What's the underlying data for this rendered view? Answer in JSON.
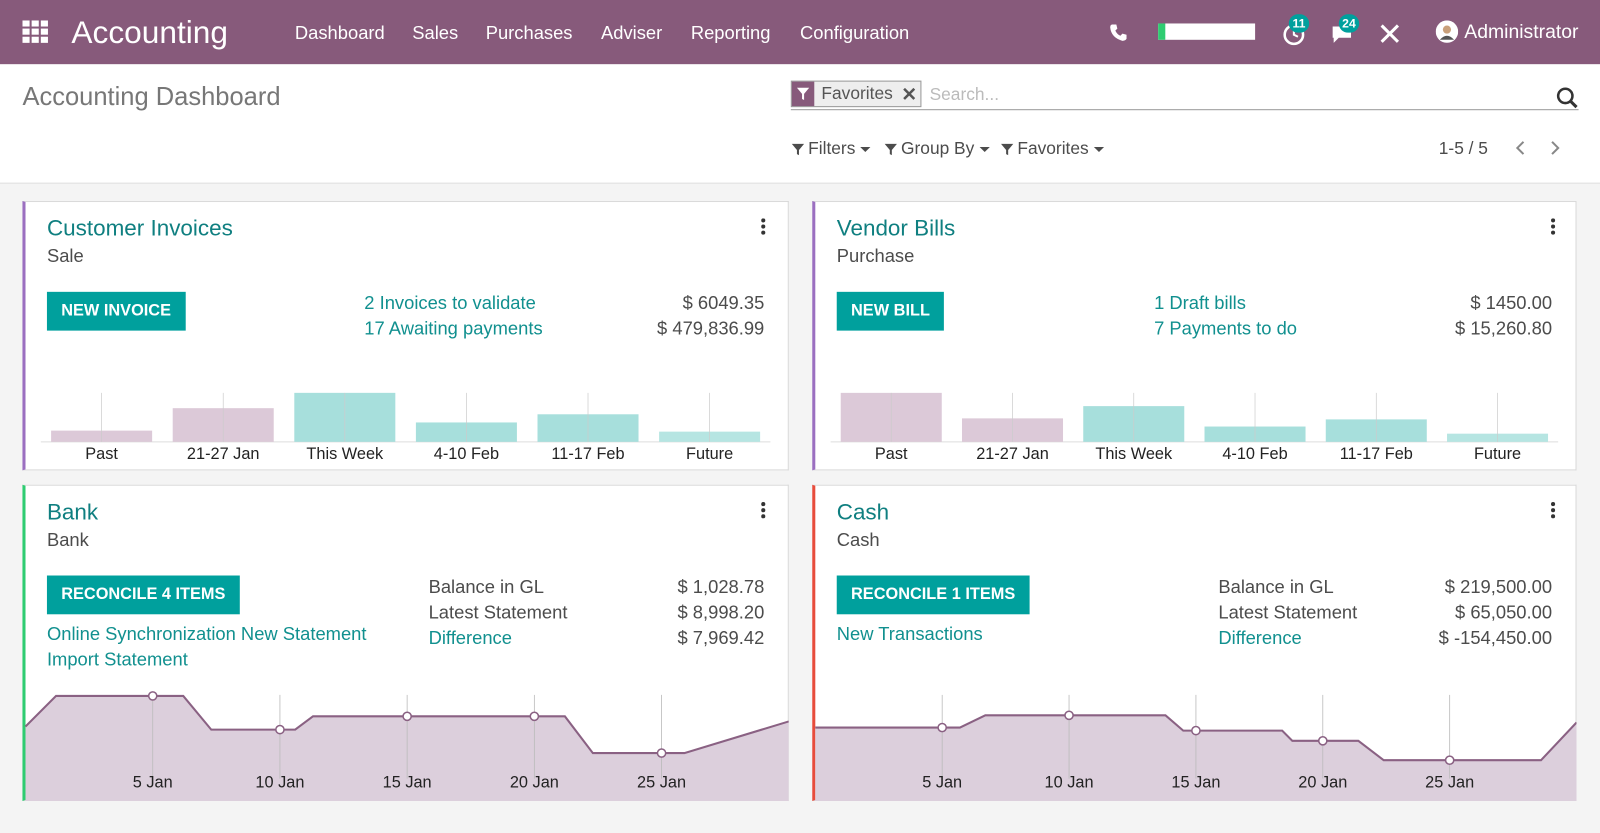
{
  "navbar": {
    "app_name": "Accounting",
    "menu": [
      "Dashboard",
      "Sales",
      "Purchases",
      "Adviser",
      "Reporting",
      "Configuration"
    ],
    "badges": [
      11,
      24
    ],
    "user": "Administrator"
  },
  "control_panel": {
    "breadcrumb": "Accounting Dashboard",
    "facet": "Favorites",
    "search_placeholder": "Search...",
    "buttons": [
      "Filters",
      "Group By",
      "Favorites"
    ],
    "pager": "1-5 / 5"
  },
  "journals": [
    {
      "name": "Customer Invoices",
      "type": "Sale",
      "color": "#9b6fc0",
      "button": "NEW INVOICE",
      "links": [],
      "stats": [
        {
          "label": "2 Invoices to validate",
          "amount": "$ 6049.35",
          "link": true
        },
        {
          "label": "17 Awaiting payments",
          "amount": "$ 479,836.99",
          "link": true
        }
      ],
      "chart": {
        "type": "bar",
        "categories": [
          "Past",
          "21-27 Jan",
          "This Week",
          "4-10 Feb",
          "11-17 Feb",
          "Future"
        ],
        "values": [
          11,
          33,
          48,
          19,
          27,
          10
        ],
        "colors": [
          "#dcc9d8",
          "#dcc9d8",
          "#a7dfdc",
          "#a7dfdc",
          "#a7dfdc",
          "#b6e5e2"
        ]
      }
    },
    {
      "name": "Vendor Bills",
      "type": "Purchase",
      "color": "#9b6fc0",
      "button": "NEW BILL",
      "links": [],
      "stats": [
        {
          "label": "1 Draft bills",
          "amount": "$ 1450.00",
          "link": true
        },
        {
          "label": "7 Payments to do",
          "amount": "$ 15,260.80",
          "link": true
        }
      ],
      "chart": {
        "type": "bar",
        "categories": [
          "Past",
          "21-27 Jan",
          "This Week",
          "4-10 Feb",
          "11-17 Feb",
          "Future"
        ],
        "values": [
          48,
          23,
          35,
          15,
          22,
          8
        ],
        "colors": [
          "#dcc9d8",
          "#dcc9d8",
          "#a7dfdc",
          "#a7dfdc",
          "#a7dfdc",
          "#b6e5e2"
        ]
      }
    },
    {
      "name": "Bank",
      "type": "Bank",
      "color": "#2ecc71",
      "button": "RECONCILE 4 ITEMS",
      "links": [
        "Online Synchronization New Statement",
        "Import Statement"
      ],
      "stats": [
        {
          "label": "Balance in GL",
          "amount": "$ 1,028.78",
          "link": false
        },
        {
          "label": "Latest Statement",
          "amount": "$ 8,998.20",
          "link": false
        },
        {
          "label": "Difference",
          "amount": "$ 7,969.42",
          "link": true
        }
      ],
      "chart": {
        "type": "line",
        "color": "#8a6183",
        "fill": "#dccfdc",
        "xlim": [
          0,
          30
        ],
        "xticks": [
          {
            "value": 5,
            "label": "5 Jan"
          },
          {
            "value": 10,
            "label": "10 Jan"
          },
          {
            "value": 15,
            "label": "15 Jan"
          },
          {
            "value": 20,
            "label": "20 Jan"
          },
          {
            "value": 25,
            "label": "25 Jan"
          }
        ],
        "x": [
          0,
          1.2,
          5,
          6.2,
          7.3,
          10,
          10.6,
          11.3,
          15,
          20,
          21.2,
          22.3,
          25,
          25.9,
          30
        ],
        "values": [
          73,
          103,
          103,
          103,
          70,
          70,
          70,
          83,
          83,
          83,
          83,
          47,
          47,
          47,
          78
        ]
      }
    },
    {
      "name": "Cash",
      "type": "Cash",
      "color": "#e74c3c",
      "button": "RECONCILE 1 ITEMS",
      "links": [
        "New Transactions"
      ],
      "stats": [
        {
          "label": "Balance in GL",
          "amount": "$ 219,500.00",
          "link": false
        },
        {
          "label": "Latest Statement",
          "amount": "$ 65,050.00",
          "link": false
        },
        {
          "label": "Difference",
          "amount": "$ -154,450.00",
          "link": true
        }
      ],
      "chart": {
        "type": "line",
        "color": "#8a6183",
        "fill": "#dccfdc",
        "xlim": [
          0,
          30
        ],
        "xticks": [
          {
            "value": 5,
            "label": "5 Jan"
          },
          {
            "value": 10,
            "label": "10 Jan"
          },
          {
            "value": 15,
            "label": "15 Jan"
          },
          {
            "value": 20,
            "label": "20 Jan"
          },
          {
            "value": 25,
            "label": "25 Jan"
          }
        ],
        "x": [
          0,
          5,
          5.7,
          6.7,
          10,
          13.8,
          14.5,
          15,
          18.4,
          18.8,
          20,
          21.4,
          22.4,
          25,
          28.6,
          30
        ],
        "values": [
          72,
          72,
          72,
          84,
          84,
          84,
          69,
          69,
          69,
          59,
          59,
          59,
          40,
          40,
          40,
          77
        ]
      }
    }
  ]
}
